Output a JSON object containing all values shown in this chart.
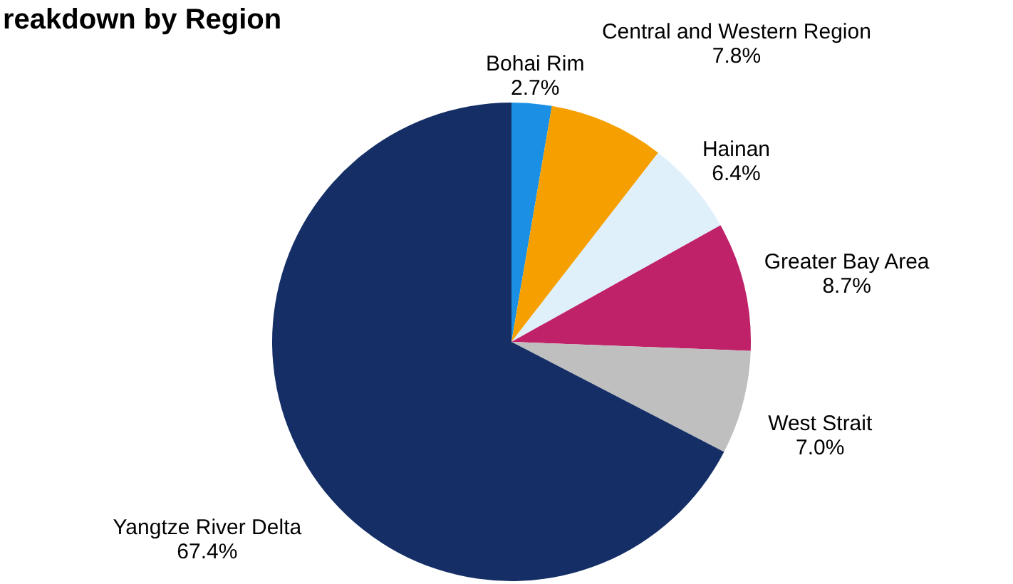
{
  "chart_data": {
    "type": "pie",
    "title": "reakdown by Region",
    "categories": [
      "Bohai Rim",
      "Central and Western Region",
      "Hainan",
      "Greater Bay Area",
      "West Strait",
      "Yangtze River Delta"
    ],
    "values": [
      2.7,
      7.8,
      6.4,
      8.7,
      7.0,
      67.4
    ],
    "value_labels": [
      "2.7%",
      "7.8%",
      "6.4%",
      "8.7%",
      "7.0%",
      "67.4%"
    ],
    "colors": [
      "#1a8fe3",
      "#f5a000",
      "#dff0fb",
      "#c0226a",
      "#bfbfbf",
      "#152f66"
    ]
  }
}
